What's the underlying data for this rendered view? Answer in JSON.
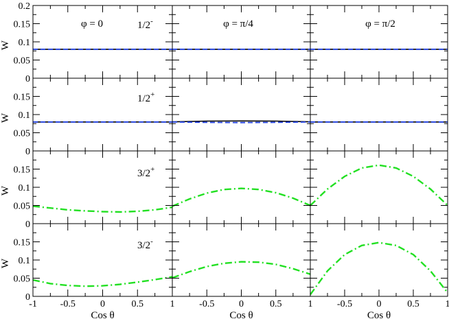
{
  "chart_data": {
    "type": "line",
    "layout": {
      "rows": 4,
      "cols": 3
    },
    "xlabel": "Cos θ",
    "ylabel": "W",
    "xlim": [
      -1,
      1
    ],
    "ylim": [
      0,
      0.2
    ],
    "column_labels": [
      "φ = 0",
      "φ = π/4",
      "φ = π/2"
    ],
    "row_labels": [
      {
        "base": "1/2",
        "sup": "-"
      },
      {
        "base": "1/2",
        "sup": "+"
      },
      {
        "base": "3/2",
        "sup": "+"
      },
      {
        "base": "3/2",
        "sup": "-"
      }
    ],
    "x_tick_labels": [
      [
        "-1",
        "-0.5",
        "0",
        "0.5",
        "1"
      ],
      [
        "",
        "-0.5",
        "0",
        "0.5",
        "1"
      ],
      [
        "",
        "-0.5",
        "0",
        "0.5",
        "1"
      ]
    ],
    "y_tick_labels": [
      [
        "0",
        "0.05",
        "0.1",
        "0.15",
        "0.2"
      ],
      [
        "0",
        "0.05",
        "0.1",
        "0.15",
        ""
      ],
      [
        "0",
        "0.05",
        "0.1",
        "0.15",
        ""
      ],
      [
        "0",
        "0.05",
        "0.1",
        "0.15",
        ""
      ]
    ],
    "series_styles": [
      {
        "color": "#000000",
        "dash": "",
        "width": 1.6
      },
      {
        "color": "#1f3fe0",
        "dash": "7,4",
        "width": 1.8
      },
      {
        "color": "#22e022",
        "dash": "10,4,2,4",
        "width": 2.4
      }
    ],
    "panels": [
      {
        "row": 0,
        "col": 0,
        "series": [
          {
            "x": [
              -1,
              -0.5,
              0,
              0.5,
              1
            ],
            "y": [
              0.0796,
              0.0796,
              0.0796,
              0.0796,
              0.0796
            ]
          },
          {
            "x": [
              -1,
              -0.5,
              0,
              0.5,
              1
            ],
            "y": [
              0.0796,
              0.0796,
              0.0796,
              0.0796,
              0.0796
            ]
          }
        ]
      },
      {
        "row": 0,
        "col": 1,
        "series": [
          {
            "x": [
              -1,
              -0.5,
              0,
              0.5,
              1
            ],
            "y": [
              0.0796,
              0.0796,
              0.0796,
              0.0796,
              0.0796
            ]
          },
          {
            "x": [
              -1,
              -0.5,
              0,
              0.5,
              1
            ],
            "y": [
              0.0796,
              0.0796,
              0.0796,
              0.0796,
              0.0796
            ]
          }
        ]
      },
      {
        "row": 0,
        "col": 2,
        "series": [
          {
            "x": [
              -1,
              -0.5,
              0,
              0.5,
              1
            ],
            "y": [
              0.0796,
              0.0796,
              0.0796,
              0.0796,
              0.0796
            ]
          },
          {
            "x": [
              -1,
              -0.5,
              0,
              0.5,
              1
            ],
            "y": [
              0.0796,
              0.0796,
              0.0796,
              0.0796,
              0.0796
            ]
          }
        ]
      },
      {
        "row": 1,
        "col": 0,
        "series": [
          {
            "x": [
              -1,
              -0.5,
              0,
              0.5,
              1
            ],
            "y": [
              0.0796,
              0.0796,
              0.0796,
              0.0796,
              0.0796
            ]
          },
          {
            "x": [
              -1,
              -0.5,
              0,
              0.5,
              1
            ],
            "y": [
              0.0796,
              0.0796,
              0.0796,
              0.0796,
              0.0796
            ]
          }
        ]
      },
      {
        "row": 1,
        "col": 1,
        "series": [
          {
            "x": [
              -1,
              -0.5,
              0,
              0.5,
              1
            ],
            "y": [
              0.08,
              0.082,
              0.0825,
              0.082,
              0.08
            ]
          },
          {
            "x": [
              -1,
              -0.5,
              0,
              0.5,
              1
            ],
            "y": [
              0.0796,
              0.0785,
              0.078,
              0.0785,
              0.0796
            ]
          }
        ]
      },
      {
        "row": 1,
        "col": 2,
        "series": [
          {
            "x": [
              -1,
              -0.5,
              0,
              0.5,
              1
            ],
            "y": [
              0.0796,
              0.0796,
              0.0796,
              0.0796,
              0.0796
            ]
          },
          {
            "x": [
              -1,
              -0.5,
              0,
              0.5,
              1
            ],
            "y": [
              0.0796,
              0.0796,
              0.0796,
              0.0796,
              0.0796
            ]
          }
        ]
      },
      {
        "row": 2,
        "col": 0,
        "series": [
          {
            "x": [
              -1,
              -0.75,
              -0.5,
              -0.25,
              0,
              0.25,
              0.5,
              0.75,
              1
            ],
            "y": [
              0.048,
              0.043,
              0.038,
              0.035,
              0.033,
              0.032,
              0.034,
              0.038,
              0.045
            ]
          }
        ]
      },
      {
        "row": 2,
        "col": 1,
        "series": [
          {
            "x": [
              -1,
              -0.75,
              -0.5,
              -0.25,
              0,
              0.25,
              0.5,
              0.75,
              1
            ],
            "y": [
              0.048,
              0.068,
              0.084,
              0.094,
              0.097,
              0.094,
              0.085,
              0.07,
              0.05
            ]
          }
        ]
      },
      {
        "row": 2,
        "col": 2,
        "series": [
          {
            "x": [
              -1,
              -0.75,
              -0.5,
              -0.25,
              0,
              0.25,
              0.5,
              0.75,
              1
            ],
            "y": [
              0.05,
              0.095,
              0.13,
              0.153,
              0.161,
              0.153,
              0.13,
              0.095,
              0.05
            ]
          }
        ]
      },
      {
        "row": 3,
        "col": 0,
        "series": [
          {
            "x": [
              -1,
              -0.75,
              -0.5,
              -0.25,
              0,
              0.25,
              0.5,
              0.75,
              1
            ],
            "y": [
              0.045,
              0.035,
              0.03,
              0.028,
              0.029,
              0.033,
              0.039,
              0.046,
              0.054
            ]
          }
        ]
      },
      {
        "row": 3,
        "col": 1,
        "series": [
          {
            "x": [
              -1,
              -0.75,
              -0.5,
              -0.25,
              0,
              0.25,
              0.5,
              0.75,
              1
            ],
            "y": [
              0.051,
              0.068,
              0.082,
              0.091,
              0.095,
              0.094,
              0.088,
              0.076,
              0.061
            ]
          }
        ]
      },
      {
        "row": 3,
        "col": 2,
        "series": [
          {
            "x": [
              -1,
              -0.75,
              -0.5,
              -0.25,
              0,
              0.25,
              0.5,
              0.75,
              1
            ],
            "y": [
              0.005,
              0.07,
              0.115,
              0.14,
              0.148,
              0.14,
              0.115,
              0.07,
              0.01
            ]
          }
        ]
      }
    ]
  }
}
